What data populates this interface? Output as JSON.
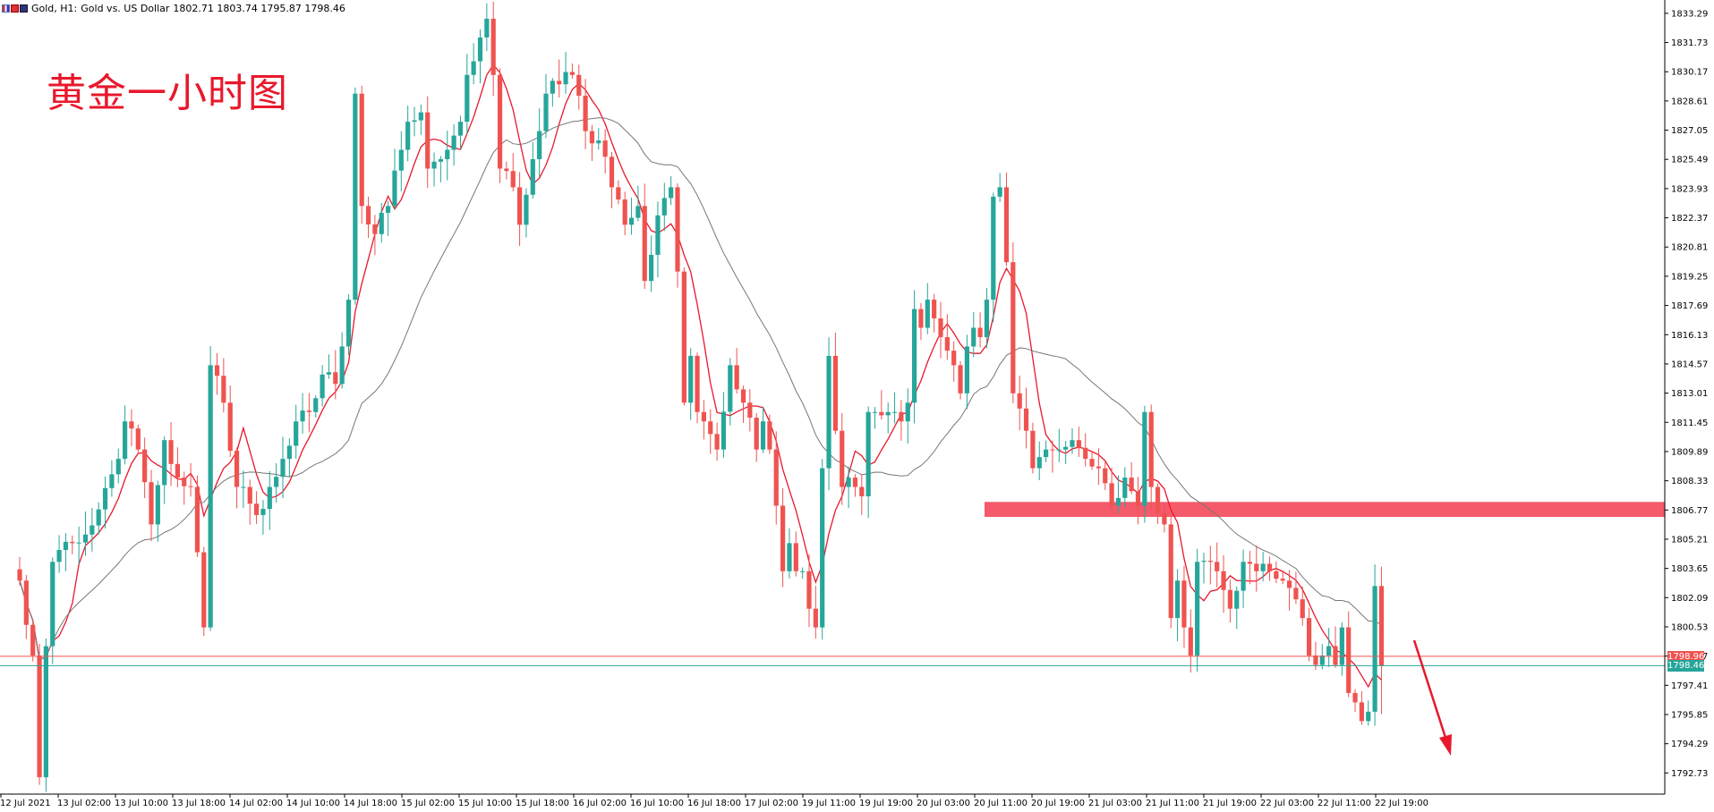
{
  "header": {
    "symbol": "Gold, H1:",
    "description": "Gold vs. US Dollar",
    "ohlc": "1802.71 1803.74 1795.87 1798.46"
  },
  "annotation": {
    "title": "黄金一小时图",
    "resistance_zone": [
      1806.4,
      1807.2
    ],
    "arrow": "down"
  },
  "price_tags": {
    "ask": "1798.96",
    "bid": "1798.46"
  },
  "colors": {
    "bull": "#26a69a",
    "bear": "#ef5350",
    "ma_fast": "#e8182c",
    "ma_slow": "#777777",
    "zone": "#f45a6a",
    "ask_line": "#ef5350",
    "bid_line": "#26a69a"
  },
  "chart_data": {
    "type": "candlestick",
    "ylim": [
      1791.6,
      1834.0
    ],
    "y_ticks": [
      "1833.29",
      "1831.73",
      "1830.17",
      "1828.61",
      "1827.05",
      "1825.49",
      "1823.93",
      "1822.37",
      "1820.81",
      "1819.25",
      "1817.69",
      "1816.13",
      "1814.57",
      "1813.01",
      "1811.45",
      "1809.89",
      "1808.33",
      "1806.77",
      "1805.21",
      "1803.65",
      "1802.09",
      "1800.53",
      "1798.97",
      "1797.41",
      "1795.85",
      "1794.29",
      "1792.73"
    ],
    "x_ticks": [
      "12 Jul 2021",
      "13 Jul 02:00",
      "13 Jul 10:00",
      "13 Jul 18:00",
      "14 Jul 02:00",
      "14 Jul 10:00",
      "14 Jul 18:00",
      "15 Jul 02:00",
      "15 Jul 10:00",
      "15 Jul 18:00",
      "16 Jul 02:00",
      "16 Jul 10:00",
      "16 Jul 18:00",
      "17 Jul 02:00",
      "19 Jul 11:00",
      "19 Jul 19:00",
      "20 Jul 03:00",
      "20 Jul 11:00",
      "20 Jul 19:00",
      "21 Jul 03:00",
      "21 Jul 11:00",
      "21 Jul 19:00",
      "22 Jul 03:00",
      "22 Jul 11:00",
      "22 Jul 19:00"
    ],
    "anchors": [
      [
        0,
        1803.0
      ],
      [
        2,
        1799.0
      ],
      [
        3,
        1792.5
      ],
      [
        4,
        1799.5
      ],
      [
        5,
        1804.0
      ],
      [
        8,
        1805.0
      ],
      [
        12,
        1806.8
      ],
      [
        15,
        1809.5
      ],
      [
        16,
        1811.5
      ],
      [
        18,
        1810.0
      ],
      [
        20,
        1806.0
      ],
      [
        22,
        1810.5
      ],
      [
        24,
        1808.5
      ],
      [
        26,
        1808.0
      ],
      [
        28,
        1800.5
      ],
      [
        29,
        1814.5
      ],
      [
        31,
        1812.5
      ],
      [
        33,
        1808.0
      ],
      [
        34,
        1808.0
      ],
      [
        36,
        1806.5
      ],
      [
        38,
        1808.0
      ],
      [
        40,
        1809.5
      ],
      [
        42,
        1811.5
      ],
      [
        44,
        1812.0
      ],
      [
        46,
        1814.0
      ],
      [
        48,
        1813.5
      ],
      [
        49,
        1815.5
      ],
      [
        50,
        1818.0
      ],
      [
        51,
        1829.0
      ],
      [
        52,
        1823.0
      ],
      [
        54,
        1821.5
      ],
      [
        56,
        1823.0
      ],
      [
        58,
        1826.0
      ],
      [
        59,
        1827.5
      ],
      [
        61,
        1828.0
      ],
      [
        62,
        1825.0
      ],
      [
        64,
        1825.5
      ],
      [
        65,
        1826.0
      ],
      [
        67,
        1827.5
      ],
      [
        68,
        1830.0
      ],
      [
        70,
        1832.0
      ],
      [
        71,
        1833.0
      ],
      [
        72,
        1830.0
      ],
      [
        73,
        1825.0
      ],
      [
        75,
        1824.0
      ],
      [
        76,
        1822.0
      ],
      [
        78,
        1825.5
      ],
      [
        79,
        1827.0
      ],
      [
        80,
        1829.0
      ],
      [
        82,
        1829.5
      ],
      [
        84,
        1830.0
      ],
      [
        86,
        1827.0
      ],
      [
        88,
        1826.5
      ],
      [
        90,
        1824.0
      ],
      [
        92,
        1822.0
      ],
      [
        94,
        1823.0
      ],
      [
        95,
        1819.0
      ],
      [
        97,
        1822.5
      ],
      [
        99,
        1824.0
      ],
      [
        100,
        1819.5
      ],
      [
        101,
        1812.5
      ],
      [
        102,
        1815.0
      ],
      [
        103,
        1812.0
      ],
      [
        104,
        1811.5
      ],
      [
        106,
        1810.0
      ],
      [
        108,
        1814.5
      ],
      [
        110,
        1812.5
      ],
      [
        112,
        1810.0
      ],
      [
        113,
        1811.5
      ],
      [
        114,
        1810.0
      ],
      [
        115,
        1807.0
      ],
      [
        116,
        1803.5
      ],
      [
        117,
        1805.0
      ],
      [
        118,
        1803.5
      ],
      [
        119,
        1803.5
      ],
      [
        120,
        1801.5
      ],
      [
        121,
        1800.5
      ],
      [
        122,
        1809.0
      ],
      [
        123,
        1815.0
      ],
      [
        124,
        1811.0
      ],
      [
        125,
        1808.0
      ],
      [
        126,
        1808.5
      ],
      [
        127,
        1808.0
      ],
      [
        128,
        1807.5
      ],
      [
        129,
        1812.0
      ],
      [
        130,
        1812.0
      ],
      [
        132,
        1812.0
      ],
      [
        133,
        1812.0
      ],
      [
        134,
        1811.5
      ],
      [
        135,
        1812.5
      ],
      [
        136,
        1817.5
      ],
      [
        137,
        1816.5
      ],
      [
        138,
        1818.0
      ],
      [
        139,
        1817.0
      ],
      [
        140,
        1816.0
      ],
      [
        142,
        1814.5
      ],
      [
        143,
        1813.0
      ],
      [
        144,
        1815.5
      ],
      [
        145,
        1816.5
      ],
      [
        146,
        1816.0
      ],
      [
        147,
        1818.0
      ],
      [
        148,
        1823.5
      ],
      [
        149,
        1824.0
      ],
      [
        150,
        1820.0
      ],
      [
        151,
        1813.0
      ],
      [
        153,
        1811.0
      ],
      [
        154,
        1809.0
      ],
      [
        156,
        1810.0
      ],
      [
        158,
        1810.0
      ],
      [
        160,
        1810.5
      ],
      [
        162,
        1809.5
      ],
      [
        164,
        1809.0
      ],
      [
        166,
        1807.0
      ],
      [
        168,
        1808.5
      ],
      [
        170,
        1807.0
      ],
      [
        171,
        1812.0
      ],
      [
        172,
        1808.0
      ],
      [
        174,
        1806.0
      ],
      [
        175,
        1801.0
      ],
      [
        176,
        1803.0
      ],
      [
        177,
        1800.5
      ],
      [
        178,
        1799.0
      ],
      [
        179,
        1804.0
      ],
      [
        181,
        1804.0
      ],
      [
        182,
        1803.5
      ],
      [
        183,
        1802.5
      ],
      [
        184,
        1801.5
      ],
      [
        186,
        1804.0
      ],
      [
        188,
        1803.5
      ],
      [
        190,
        1803.5
      ],
      [
        192,
        1803.0
      ],
      [
        194,
        1802.0
      ],
      [
        195,
        1801.0
      ],
      [
        196,
        1799.0
      ],
      [
        197,
        1798.5
      ],
      [
        198,
        1799.0
      ],
      [
        199,
        1799.5
      ],
      [
        200,
        1798.5
      ],
      [
        201,
        1800.5
      ],
      [
        202,
        1797.0
      ],
      [
        203,
        1796.5
      ],
      [
        204,
        1795.5
      ],
      [
        205,
        1796.0
      ],
      [
        206,
        1802.71
      ],
      [
        207,
        1798.46
      ]
    ],
    "ma_periods": [
      6,
      24
    ]
  }
}
